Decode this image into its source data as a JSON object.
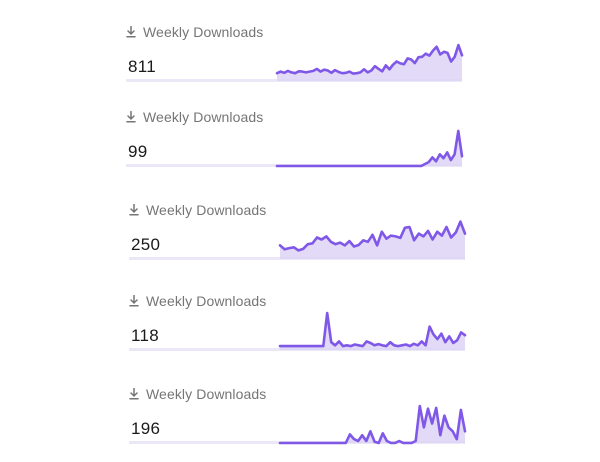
{
  "widgets": [
    {
      "label": "Weekly Downloads",
      "count": "811",
      "trend": [
        0.2,
        0.24,
        0.21,
        0.26,
        0.22,
        0.2,
        0.25,
        0.24,
        0.22,
        0.24,
        0.26,
        0.31,
        0.24,
        0.29,
        0.27,
        0.21,
        0.28,
        0.23,
        0.2,
        0.21,
        0.24,
        0.19,
        0.2,
        0.22,
        0.3,
        0.22,
        0.27,
        0.38,
        0.31,
        0.25,
        0.4,
        0.3,
        0.42,
        0.5,
        0.45,
        0.43,
        0.58,
        0.55,
        0.46,
        0.61,
        0.62,
        0.7,
        0.65,
        0.78,
        0.88,
        0.68,
        0.75,
        0.72,
        0.5,
        0.62,
        0.92,
        0.66
      ]
    },
    {
      "label": "Weekly Downloads",
      "count": "99",
      "trend": [
        0.0,
        0.0,
        0.0,
        0.0,
        0.0,
        0.0,
        0.0,
        0.0,
        0.0,
        0.0,
        0.0,
        0.0,
        0.0,
        0.0,
        0.0,
        0.0,
        0.0,
        0.0,
        0.0,
        0.0,
        0.0,
        0.0,
        0.0,
        0.0,
        0.0,
        0.0,
        0.0,
        0.0,
        0.0,
        0.0,
        0.0,
        0.0,
        0.0,
        0.0,
        0.0,
        0.0,
        0.0,
        0.0,
        0.0,
        0.0,
        0.05,
        0.1,
        0.22,
        0.12,
        0.3,
        0.2,
        0.35,
        0.15,
        0.3,
        0.9,
        0.25
      ]
    },
    {
      "label": "Weekly Downloads",
      "count": "250",
      "trend": [
        0.35,
        0.25,
        0.28,
        0.3,
        0.22,
        0.26,
        0.38,
        0.4,
        0.55,
        0.5,
        0.58,
        0.44,
        0.38,
        0.42,
        0.35,
        0.46,
        0.32,
        0.36,
        0.48,
        0.44,
        0.62,
        0.35,
        0.7,
        0.52,
        0.6,
        0.58,
        0.54,
        0.8,
        0.82,
        0.48,
        0.65,
        0.58,
        0.72,
        0.5,
        0.7,
        0.6,
        0.82,
        0.55,
        0.68,
        0.96,
        0.65
      ]
    },
    {
      "label": "Weekly Downloads",
      "count": "118",
      "trend": [
        0.1,
        0.1,
        0.1,
        0.1,
        0.1,
        0.1,
        0.1,
        0.1,
        0.1,
        0.1,
        0.1,
        0.1,
        0.95,
        0.2,
        0.12,
        0.22,
        0.1,
        0.12,
        0.1,
        0.14,
        0.12,
        0.1,
        0.22,
        0.18,
        0.12,
        0.15,
        0.12,
        0.1,
        0.2,
        0.12,
        0.1,
        0.12,
        0.14,
        0.1,
        0.16,
        0.12,
        0.22,
        0.12,
        0.6,
        0.4,
        0.28,
        0.42,
        0.2,
        0.35,
        0.18,
        0.25,
        0.45,
        0.38
      ]
    },
    {
      "label": "Weekly Downloads",
      "count": "196",
      "trend": [
        0.0,
        0.0,
        0.0,
        0.0,
        0.0,
        0.0,
        0.0,
        0.0,
        0.0,
        0.0,
        0.0,
        0.0,
        0.0,
        0.0,
        0.0,
        0.0,
        0.0,
        0.22,
        0.1,
        0.05,
        0.2,
        0.05,
        0.3,
        0.03,
        0.0,
        0.25,
        0.05,
        0.0,
        0.0,
        0.05,
        0.0,
        0.0,
        0.0,
        0.05,
        0.95,
        0.4,
        0.88,
        0.5,
        0.9,
        0.2,
        0.7,
        0.4,
        0.3,
        0.1,
        0.85,
        0.3
      ]
    }
  ],
  "colors": {
    "line": "#8058e8",
    "fill": "#ddd4f6",
    "baseline": "#ebe7f6",
    "label": "#757575",
    "count": "#1a1a1a"
  },
  "icon": "download-icon"
}
